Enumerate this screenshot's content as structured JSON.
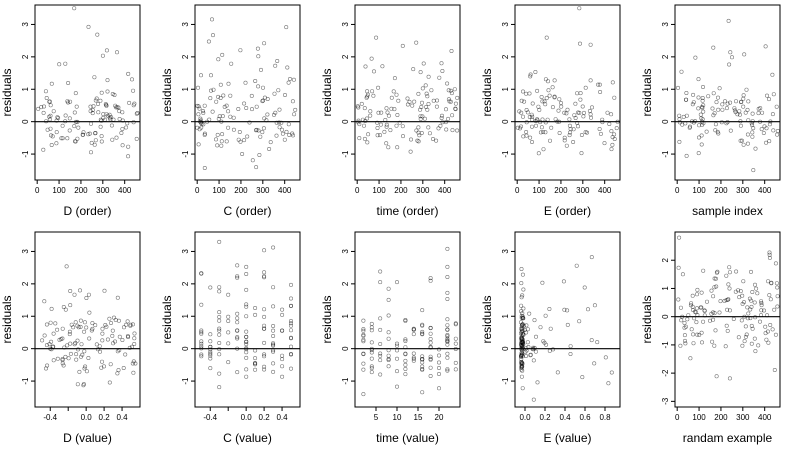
{
  "chart_data": [
    {
      "type": "scatter",
      "xlabel": "D (order)",
      "ylabel": "residuals",
      "xlim": [
        -10,
        470
      ],
      "ylim": [
        -1.8,
        3.6
      ],
      "xticks": [
        {
          "v": 0,
          "label": "0"
        },
        {
          "v": 100,
          "label": "100"
        },
        {
          "v": 200,
          "label": "200"
        },
        {
          "v": 300,
          "label": "300"
        },
        {
          "v": 400,
          "label": "400"
        }
      ],
      "yticks": [
        {
          "v": -1,
          "label": "-1"
        },
        {
          "v": 0,
          "label": "0"
        },
        {
          "v": 1,
          "label": "1"
        },
        {
          "v": 2,
          "label": "2"
        },
        {
          "v": 3,
          "label": "3"
        }
      ],
      "hline": 0,
      "gen": {
        "kind": "order",
        "n": 130,
        "seed": 11
      }
    },
    {
      "type": "scatter",
      "xlabel": "C (order)",
      "ylabel": "residuals",
      "xlim": [
        -10,
        470
      ],
      "ylim": [
        -1.8,
        3.6
      ],
      "xticks": [
        {
          "v": 0,
          "label": "0"
        },
        {
          "v": 100,
          "label": "100"
        },
        {
          "v": 200,
          "label": "200"
        },
        {
          "v": 300,
          "label": "300"
        },
        {
          "v": 400,
          "label": "400"
        }
      ],
      "yticks": [
        {
          "v": -1,
          "label": "-1"
        },
        {
          "v": 0,
          "label": "0"
        },
        {
          "v": 1,
          "label": "1"
        },
        {
          "v": 2,
          "label": "2"
        },
        {
          "v": 3,
          "label": "3"
        }
      ],
      "hline": 0,
      "gen": {
        "kind": "order",
        "n": 130,
        "seed": 23
      }
    },
    {
      "type": "scatter",
      "xlabel": "time (order)",
      "ylabel": "residuals",
      "xlim": [
        -10,
        470
      ],
      "ylim": [
        -1.8,
        3.6
      ],
      "xticks": [
        {
          "v": 0,
          "label": "0"
        },
        {
          "v": 100,
          "label": "100"
        },
        {
          "v": 200,
          "label": "200"
        },
        {
          "v": 300,
          "label": "300"
        },
        {
          "v": 400,
          "label": "400"
        }
      ],
      "yticks": [
        {
          "v": -1,
          "label": "-1"
        },
        {
          "v": 0,
          "label": "0"
        },
        {
          "v": 1,
          "label": "1"
        },
        {
          "v": 2,
          "label": "2"
        },
        {
          "v": 3,
          "label": "3"
        }
      ],
      "hline": 0,
      "gen": {
        "kind": "order",
        "n": 130,
        "seed": 37
      }
    },
    {
      "type": "scatter",
      "xlabel": "E (order)",
      "ylabel": "residuals",
      "xlim": [
        -10,
        470
      ],
      "ylim": [
        -1.8,
        3.6
      ],
      "xticks": [
        {
          "v": 0,
          "label": "0"
        },
        {
          "v": 100,
          "label": "100"
        },
        {
          "v": 200,
          "label": "200"
        },
        {
          "v": 300,
          "label": "300"
        },
        {
          "v": 400,
          "label": "400"
        }
      ],
      "yticks": [
        {
          "v": -1,
          "label": "-1"
        },
        {
          "v": 0,
          "label": "0"
        },
        {
          "v": 1,
          "label": "1"
        },
        {
          "v": 2,
          "label": "2"
        },
        {
          "v": 3,
          "label": "3"
        }
      ],
      "hline": 0,
      "gen": {
        "kind": "order",
        "n": 130,
        "seed": 41
      }
    },
    {
      "type": "scatter",
      "xlabel": "sample index",
      "ylabel": "residuals",
      "xlim": [
        -10,
        470
      ],
      "ylim": [
        -1.8,
        3.6
      ],
      "xticks": [
        {
          "v": 0,
          "label": "0"
        },
        {
          "v": 100,
          "label": "100"
        },
        {
          "v": 200,
          "label": "200"
        },
        {
          "v": 300,
          "label": "300"
        },
        {
          "v": 400,
          "label": "400"
        }
      ],
      "yticks": [
        {
          "v": -1,
          "label": "-1"
        },
        {
          "v": 0,
          "label": "0"
        },
        {
          "v": 1,
          "label": "1"
        },
        {
          "v": 2,
          "label": "2"
        },
        {
          "v": 3,
          "label": "3"
        }
      ],
      "hline": 0,
      "gen": {
        "kind": "order",
        "n": 130,
        "seed": 53
      }
    },
    {
      "type": "scatter",
      "xlabel": "D (value)",
      "ylabel": "residuals",
      "xlim": [
        -0.57,
        0.6
      ],
      "ylim": [
        -1.8,
        3.6
      ],
      "xticks": [
        {
          "v": -0.4,
          "label": "-0.4"
        },
        {
          "v": -0.2,
          "label": ""
        },
        {
          "v": 0.0,
          "label": "0.0"
        },
        {
          "v": 0.2,
          "label": "0.2"
        },
        {
          "v": 0.4,
          "label": "0.4"
        }
      ],
      "yticks": [
        {
          "v": -1,
          "label": "-1"
        },
        {
          "v": 0,
          "label": "0"
        },
        {
          "v": 1,
          "label": "1"
        },
        {
          "v": 2,
          "label": "2"
        },
        {
          "v": 3,
          "label": "3"
        }
      ],
      "hline": 0,
      "gen": {
        "kind": "uniform",
        "n": 130,
        "seed": 61,
        "lo": -0.5,
        "hi": 0.55
      }
    },
    {
      "type": "scatter",
      "xlabel": "C (value)",
      "ylabel": "residuals",
      "xlim": [
        -0.57,
        0.6
      ],
      "ylim": [
        -1.8,
        3.6
      ],
      "xticks": [
        {
          "v": -0.4,
          "label": "-0.4"
        },
        {
          "v": -0.2,
          "label": ""
        },
        {
          "v": 0.0,
          "label": "0.0"
        },
        {
          "v": 0.2,
          "label": "0.2"
        },
        {
          "v": 0.4,
          "label": "0.4"
        }
      ],
      "yticks": [
        {
          "v": -1,
          "label": "-1"
        },
        {
          "v": 0,
          "label": "0"
        },
        {
          "v": 1,
          "label": "1"
        },
        {
          "v": 2,
          "label": "2"
        },
        {
          "v": 3,
          "label": "3"
        }
      ],
      "hline": 0,
      "gen": {
        "kind": "columns",
        "n": 130,
        "seed": 67,
        "cols": [
          -0.5,
          -0.4,
          -0.3,
          -0.2,
          -0.1,
          0.0,
          0.1,
          0.2,
          0.3,
          0.4,
          0.5
        ]
      }
    },
    {
      "type": "scatter",
      "xlabel": "time (value)",
      "ylabel": "residuals",
      "xlim": [
        0,
        25
      ],
      "ylim": [
        -1.8,
        3.6
      ],
      "xticks": [
        {
          "v": 5,
          "label": "5"
        },
        {
          "v": 10,
          "label": "10"
        },
        {
          "v": 15,
          "label": "15"
        },
        {
          "v": 20,
          "label": "20"
        }
      ],
      "yticks": [
        {
          "v": -1,
          "label": "-1"
        },
        {
          "v": 0,
          "label": "0"
        },
        {
          "v": 1,
          "label": "1"
        },
        {
          "v": 2,
          "label": "2"
        },
        {
          "v": 3,
          "label": "3"
        }
      ],
      "hline": 0,
      "gen": {
        "kind": "columns",
        "n": 130,
        "seed": 71,
        "cols": [
          2,
          4,
          6,
          8,
          10,
          12,
          14,
          16,
          18,
          20,
          22,
          24
        ]
      }
    },
    {
      "type": "scatter",
      "xlabel": "E (value)",
      "ylabel": "residuals",
      "xlim": [
        -0.1,
        0.95
      ],
      "ylim": [
        -1.8,
        3.6
      ],
      "xticks": [
        {
          "v": 0.0,
          "label": "0.0"
        },
        {
          "v": 0.2,
          "label": "0.2"
        },
        {
          "v": 0.4,
          "label": "0.4"
        },
        {
          "v": 0.6,
          "label": "0.6"
        },
        {
          "v": 0.8,
          "label": "0.8"
        }
      ],
      "yticks": [
        {
          "v": -1,
          "label": "-1"
        },
        {
          "v": 0,
          "label": "0"
        },
        {
          "v": 1,
          "label": "1"
        },
        {
          "v": 2,
          "label": "2"
        },
        {
          "v": 3,
          "label": "3"
        }
      ],
      "hline": 0,
      "gen": {
        "kind": "skew",
        "n": 140,
        "seed": 79
      }
    },
    {
      "type": "scatter",
      "xlabel": "randam example",
      "ylabel": "residuals",
      "xlim": [
        -10,
        470
      ],
      "ylim": [
        -3.2,
        3.0
      ],
      "xticks": [
        {
          "v": 0,
          "label": "0"
        },
        {
          "v": 100,
          "label": "100"
        },
        {
          "v": 200,
          "label": "200"
        },
        {
          "v": 300,
          "label": "300"
        },
        {
          "v": 400,
          "label": "400"
        }
      ],
      "yticks": [
        {
          "v": -3,
          "label": "-3"
        },
        {
          "v": -2,
          "label": "-2"
        },
        {
          "v": -1,
          "label": "-1"
        },
        {
          "v": 0,
          "label": "0"
        },
        {
          "v": 1,
          "label": "1"
        },
        {
          "v": 2,
          "label": "2"
        }
      ],
      "hline": 0,
      "gen": {
        "kind": "random",
        "n": 150,
        "seed": 97
      }
    }
  ]
}
